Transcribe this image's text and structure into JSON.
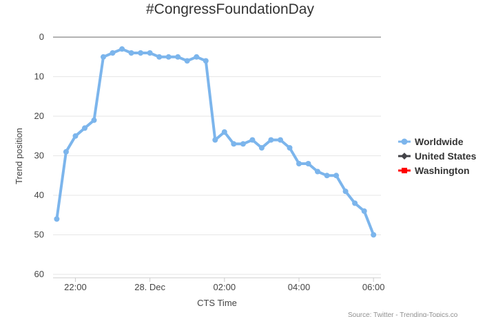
{
  "chart_data": {
    "type": "line",
    "title": "#CongressFoundationDay",
    "xlabel": "CTS Time",
    "ylabel": "Trend position",
    "x_ticks": [
      "22:00",
      "28. Dec",
      "02:00",
      "04:00",
      "06:00"
    ],
    "y_ticks": [
      0,
      10,
      20,
      30,
      40,
      50,
      60
    ],
    "ylim": [
      0,
      60
    ],
    "y_reversed": true,
    "x_range_hours": [
      21.4,
      6.2
    ],
    "legend_placement": "right",
    "grid": true,
    "series": [
      {
        "name": "Worldwide",
        "color": "#7cb5ec",
        "marker": "circle",
        "points": [
          {
            "x": "21:30",
            "y": 46
          },
          {
            "x": "21:45",
            "y": 29
          },
          {
            "x": "22:00",
            "y": 25
          },
          {
            "x": "22:15",
            "y": 23
          },
          {
            "x": "22:30",
            "y": 21
          },
          {
            "x": "22:45",
            "y": 5
          },
          {
            "x": "23:00",
            "y": 4
          },
          {
            "x": "23:15",
            "y": 3
          },
          {
            "x": "23:30",
            "y": 4
          },
          {
            "x": "23:45",
            "y": 4
          },
          {
            "x": "00:00",
            "y": 4
          },
          {
            "x": "00:15",
            "y": 5
          },
          {
            "x": "00:30",
            "y": 5
          },
          {
            "x": "00:45",
            "y": 5
          },
          {
            "x": "01:00",
            "y": 6
          },
          {
            "x": "01:15",
            "y": 5
          },
          {
            "x": "01:30",
            "y": 6
          },
          {
            "x": "01:45",
            "y": 26
          },
          {
            "x": "02:00",
            "y": 24
          },
          {
            "x": "02:15",
            "y": 27
          },
          {
            "x": "02:30",
            "y": 27
          },
          {
            "x": "02:45",
            "y": 26
          },
          {
            "x": "03:00",
            "y": 28
          },
          {
            "x": "03:15",
            "y": 26
          },
          {
            "x": "03:30",
            "y": 26
          },
          {
            "x": "03:45",
            "y": 28
          },
          {
            "x": "04:00",
            "y": 32
          },
          {
            "x": "04:15",
            "y": 32
          },
          {
            "x": "04:30",
            "y": 34
          },
          {
            "x": "04:45",
            "y": 35
          },
          {
            "x": "05:00",
            "y": 35
          },
          {
            "x": "05:15",
            "y": 39
          },
          {
            "x": "05:30",
            "y": 42
          },
          {
            "x": "05:45",
            "y": 44
          },
          {
            "x": "06:00",
            "y": 50
          }
        ]
      },
      {
        "name": "United States",
        "color": "#434348",
        "marker": "diamond",
        "points": []
      },
      {
        "name": "Washington",
        "color": "#ff0000",
        "marker": "square",
        "points": []
      }
    ],
    "credit": "Source: Twitter - Trending-Topics.co"
  }
}
